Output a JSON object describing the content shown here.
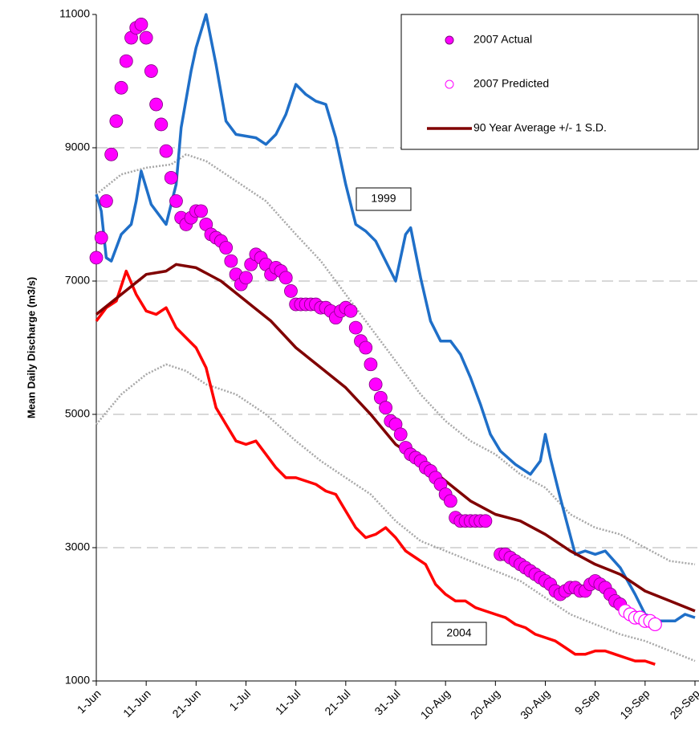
{
  "chart_data": {
    "type": "line",
    "ylabel": "Mean Daily Discharge (m3/s)",
    "ylim": [
      1000,
      11000
    ],
    "yticks": [
      1000,
      3000,
      5000,
      7000,
      9000,
      11000
    ],
    "grid": true,
    "xlim": [
      0,
      120
    ],
    "xticks": [
      {
        "value": 0,
        "label": "1-Jun"
      },
      {
        "value": 10,
        "label": "11-Jun"
      },
      {
        "value": 20,
        "label": "21-Jun"
      },
      {
        "value": 30,
        "label": "1-Jul"
      },
      {
        "value": 40,
        "label": "11-Jul"
      },
      {
        "value": 50,
        "label": "21-Jul"
      },
      {
        "value": 60,
        "label": "31-Jul"
      },
      {
        "value": 70,
        "label": "10-Aug"
      },
      {
        "value": 80,
        "label": "20-Aug"
      },
      {
        "value": 90,
        "label": "30-Aug"
      },
      {
        "value": 100,
        "label": "9-Sep"
      },
      {
        "value": 110,
        "label": "19-Sep"
      },
      {
        "value": 120,
        "label": "29-Sep"
      }
    ],
    "legend": "upper right",
    "annotations": [
      {
        "text": "1999"
      },
      {
        "text": "2004"
      }
    ],
    "series": [
      {
        "color": "#a8a8a8",
        "style": "dotted",
        "x": [
          0,
          5,
          10,
          15,
          18,
          22,
          28,
          34,
          40,
          45,
          50,
          55,
          60,
          65,
          70,
          75,
          80,
          85,
          90,
          95,
          100,
          105,
          110,
          115,
          120
        ],
        "values": [
          8300,
          8600,
          8700,
          8750,
          8900,
          8800,
          8500,
          8200,
          7700,
          7300,
          6800,
          6300,
          5800,
          5300,
          4900,
          4600,
          4400,
          4100,
          3900,
          3500,
          3300,
          3200,
          3000,
          2800,
          2750
        ]
      },
      {
        "color": "#a8a8a8",
        "style": "dotted",
        "x": [
          0,
          5,
          10,
          14,
          18,
          22,
          28,
          34,
          40,
          45,
          50,
          55,
          60,
          65,
          70,
          75,
          80,
          85,
          90,
          95,
          100,
          105,
          110,
          115,
          120
        ],
        "values": [
          4850,
          5300,
          5600,
          5750,
          5650,
          5450,
          5300,
          5000,
          4600,
          4300,
          4050,
          3800,
          3400,
          3100,
          2950,
          2800,
          2650,
          2500,
          2250,
          2000,
          1850,
          1700,
          1600,
          1450,
          1300
        ]
      },
      {
        "color": "#1f6fc8",
        "style": "line",
        "x": [
          0,
          1,
          2,
          3,
          5,
          7,
          8,
          9,
          11,
          13,
          14,
          16,
          17,
          19,
          20,
          22,
          24,
          26,
          28,
          32,
          34,
          36,
          38,
          40,
          42,
          44,
          46,
          48,
          50,
          52,
          54,
          56,
          58,
          60,
          62,
          63,
          65,
          67,
          69,
          71,
          73,
          75,
          77,
          79,
          81,
          84,
          87,
          89,
          90,
          91,
          93,
          96,
          98,
          100,
          102,
          105,
          108,
          110,
          113,
          116,
          118,
          120
        ],
        "values": [
          8300,
          8050,
          7350,
          7300,
          7700,
          7850,
          8200,
          8650,
          8150,
          7950,
          7850,
          8450,
          9300,
          10150,
          10500,
          11000,
          10250,
          9400,
          9200,
          9150,
          9050,
          9200,
          9500,
          9950,
          9800,
          9700,
          9650,
          9150,
          8450,
          7850,
          7750,
          7600,
          7300,
          7000,
          7700,
          7800,
          7050,
          6400,
          6100,
          6100,
          5900,
          5550,
          5150,
          4700,
          4450,
          4250,
          4100,
          4300,
          4700,
          4350,
          3750,
          2900,
          2950,
          2900,
          2950,
          2700,
          2300,
          2000,
          1900,
          1900,
          2000,
          1950
        ]
      },
      {
        "color": "#ff0000",
        "style": "line",
        "x": [
          0,
          2,
          4,
          6,
          8,
          10,
          12,
          14,
          16,
          18,
          20,
          22,
          24,
          26,
          28,
          30,
          32,
          34,
          36,
          38,
          40,
          42,
          44,
          46,
          48,
          50,
          52,
          54,
          56,
          58,
          60,
          62,
          64,
          66,
          68,
          70,
          72,
          74,
          76,
          78,
          80,
          82,
          84,
          86,
          88,
          90,
          92,
          94,
          96,
          98,
          100,
          102,
          104,
          106,
          108,
          110,
          112
        ],
        "values": [
          6400,
          6600,
          6700,
          7150,
          6800,
          6550,
          6500,
          6600,
          6300,
          6150,
          6000,
          5700,
          5100,
          4850,
          4600,
          4550,
          4600,
          4400,
          4200,
          4050,
          4050,
          4000,
          3950,
          3850,
          3800,
          3550,
          3300,
          3150,
          3200,
          3300,
          3150,
          2950,
          2850,
          2750,
          2450,
          2300,
          2200,
          2200,
          2100,
          2050,
          2000,
          1950,
          1850,
          1800,
          1700,
          1650,
          1600,
          1500,
          1400,
          1400,
          1450,
          1450,
          1400,
          1350,
          1300,
          1300,
          1250
        ]
      },
      {
        "name": "90 Year Average +/- 1 S.D.",
        "color": "#800000",
        "style": "line",
        "x": [
          0,
          5,
          10,
          14,
          16,
          20,
          25,
          30,
          35,
          40,
          45,
          50,
          55,
          60,
          65,
          70,
          75,
          80,
          85,
          90,
          95,
          100,
          105,
          110,
          115,
          120
        ],
        "values": [
          6500,
          6800,
          7100,
          7150,
          7250,
          7200,
          7000,
          6700,
          6400,
          6000,
          5700,
          5400,
          5000,
          4550,
          4300,
          4000,
          3700,
          3500,
          3400,
          3200,
          2950,
          2750,
          2600,
          2350,
          2200,
          2050
        ]
      },
      {
        "name": "2007 Actual",
        "color": "#ff00ff",
        "edgecolor": "#800080",
        "style": "markers",
        "x": [
          0,
          1,
          2,
          3,
          4,
          5,
          6,
          7,
          8,
          9,
          10,
          11,
          12,
          13,
          14,
          15,
          16,
          17,
          18,
          19,
          20,
          21,
          22,
          23,
          24,
          25,
          26,
          27,
          28,
          29,
          30,
          31,
          32,
          33,
          34,
          35,
          36,
          37,
          38,
          39,
          40,
          41,
          42,
          43,
          44,
          45,
          46,
          47,
          48,
          49,
          50,
          51,
          52,
          53,
          54,
          55,
          56,
          57,
          58,
          59,
          60,
          61,
          62,
          63,
          64,
          65,
          66,
          67,
          68,
          69,
          70,
          71,
          72,
          73,
          74,
          75,
          76,
          77,
          78,
          81,
          82,
          83,
          84,
          85,
          86,
          87,
          88,
          89,
          90,
          91,
          92,
          93,
          94,
          95,
          96,
          97,
          98,
          99,
          100,
          101,
          102,
          103,
          104,
          105
        ],
        "values": [
          7350,
          7650,
          8200,
          8900,
          9400,
          9900,
          10300,
          10650,
          10800,
          10850,
          10650,
          10150,
          9650,
          9350,
          8950,
          8550,
          8200,
          7950,
          7850,
          7950,
          8050,
          8050,
          7850,
          7700,
          7650,
          7600,
          7500,
          7300,
          7100,
          6950,
          7050,
          7250,
          7400,
          7350,
          7250,
          7100,
          7200,
          7150,
          7050,
          6850,
          6650,
          6650,
          6650,
          6650,
          6650,
          6600,
          6600,
          6550,
          6450,
          6550,
          6600,
          6550,
          6300,
          6100,
          6000,
          5750,
          5450,
          5250,
          5100,
          4900,
          4850,
          4700,
          4500,
          4400,
          4350,
          4300,
          4200,
          4150,
          4050,
          3950,
          3800,
          3700,
          3450,
          3400,
          3400,
          3400,
          3400,
          3400,
          3400,
          2900,
          2900,
          2850,
          2800,
          2750,
          2700,
          2650,
          2600,
          2550,
          2500,
          2450,
          2350,
          2300,
          2350,
          2400,
          2400,
          2350,
          2350,
          2450,
          2500,
          2450,
          2400,
          2300,
          2200,
          2150
        ]
      },
      {
        "name": "2007 Predicted",
        "color": "#ff00ff",
        "style": "hollow",
        "x": [
          106,
          107,
          108,
          109,
          110,
          111,
          112
        ],
        "values": [
          2050,
          2000,
          1950,
          1950,
          1900,
          1900,
          1850
        ]
      }
    ]
  }
}
